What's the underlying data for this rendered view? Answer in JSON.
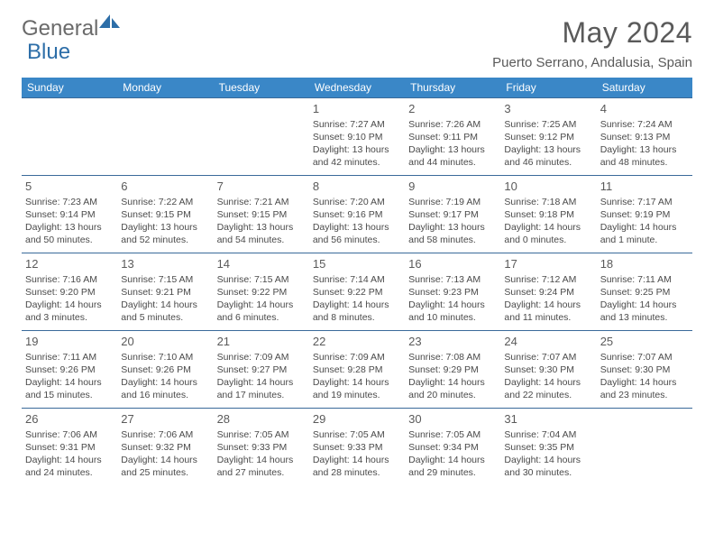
{
  "brand": {
    "part1": "General",
    "part2": "Blue"
  },
  "title": "May 2024",
  "location": "Puerto Serrano, Andalusia, Spain",
  "colors": {
    "header_bg": "#3a87c7",
    "header_fg": "#ffffff",
    "cell_border": "#3a6a9a",
    "text": "#4a4a4a",
    "title": "#5a5a5a",
    "brand_grey": "#6a6a6a",
    "brand_blue": "#2d6ea8",
    "background": "#ffffff"
  },
  "typography": {
    "title_fontsize": 32,
    "location_fontsize": 15,
    "dayheader_fontsize": 12,
    "daynum_fontsize": 13,
    "cell_fontsize": 10.5
  },
  "calendar": {
    "type": "table",
    "columns": [
      "Sunday",
      "Monday",
      "Tuesday",
      "Wednesday",
      "Thursday",
      "Friday",
      "Saturday"
    ],
    "weeks": [
      [
        null,
        null,
        null,
        {
          "n": "1",
          "sr": "7:27 AM",
          "ss": "9:10 PM",
          "dl": "13 hours and 42 minutes."
        },
        {
          "n": "2",
          "sr": "7:26 AM",
          "ss": "9:11 PM",
          "dl": "13 hours and 44 minutes."
        },
        {
          "n": "3",
          "sr": "7:25 AM",
          "ss": "9:12 PM",
          "dl": "13 hours and 46 minutes."
        },
        {
          "n": "4",
          "sr": "7:24 AM",
          "ss": "9:13 PM",
          "dl": "13 hours and 48 minutes."
        }
      ],
      [
        {
          "n": "5",
          "sr": "7:23 AM",
          "ss": "9:14 PM",
          "dl": "13 hours and 50 minutes."
        },
        {
          "n": "6",
          "sr": "7:22 AM",
          "ss": "9:15 PM",
          "dl": "13 hours and 52 minutes."
        },
        {
          "n": "7",
          "sr": "7:21 AM",
          "ss": "9:15 PM",
          "dl": "13 hours and 54 minutes."
        },
        {
          "n": "8",
          "sr": "7:20 AM",
          "ss": "9:16 PM",
          "dl": "13 hours and 56 minutes."
        },
        {
          "n": "9",
          "sr": "7:19 AM",
          "ss": "9:17 PM",
          "dl": "13 hours and 58 minutes."
        },
        {
          "n": "10",
          "sr": "7:18 AM",
          "ss": "9:18 PM",
          "dl": "14 hours and 0 minutes."
        },
        {
          "n": "11",
          "sr": "7:17 AM",
          "ss": "9:19 PM",
          "dl": "14 hours and 1 minute."
        }
      ],
      [
        {
          "n": "12",
          "sr": "7:16 AM",
          "ss": "9:20 PM",
          "dl": "14 hours and 3 minutes."
        },
        {
          "n": "13",
          "sr": "7:15 AM",
          "ss": "9:21 PM",
          "dl": "14 hours and 5 minutes."
        },
        {
          "n": "14",
          "sr": "7:15 AM",
          "ss": "9:22 PM",
          "dl": "14 hours and 6 minutes."
        },
        {
          "n": "15",
          "sr": "7:14 AM",
          "ss": "9:22 PM",
          "dl": "14 hours and 8 minutes."
        },
        {
          "n": "16",
          "sr": "7:13 AM",
          "ss": "9:23 PM",
          "dl": "14 hours and 10 minutes."
        },
        {
          "n": "17",
          "sr": "7:12 AM",
          "ss": "9:24 PM",
          "dl": "14 hours and 11 minutes."
        },
        {
          "n": "18",
          "sr": "7:11 AM",
          "ss": "9:25 PM",
          "dl": "14 hours and 13 minutes."
        }
      ],
      [
        {
          "n": "19",
          "sr": "7:11 AM",
          "ss": "9:26 PM",
          "dl": "14 hours and 15 minutes."
        },
        {
          "n": "20",
          "sr": "7:10 AM",
          "ss": "9:26 PM",
          "dl": "14 hours and 16 minutes."
        },
        {
          "n": "21",
          "sr": "7:09 AM",
          "ss": "9:27 PM",
          "dl": "14 hours and 17 minutes."
        },
        {
          "n": "22",
          "sr": "7:09 AM",
          "ss": "9:28 PM",
          "dl": "14 hours and 19 minutes."
        },
        {
          "n": "23",
          "sr": "7:08 AM",
          "ss": "9:29 PM",
          "dl": "14 hours and 20 minutes."
        },
        {
          "n": "24",
          "sr": "7:07 AM",
          "ss": "9:30 PM",
          "dl": "14 hours and 22 minutes."
        },
        {
          "n": "25",
          "sr": "7:07 AM",
          "ss": "9:30 PM",
          "dl": "14 hours and 23 minutes."
        }
      ],
      [
        {
          "n": "26",
          "sr": "7:06 AM",
          "ss": "9:31 PM",
          "dl": "14 hours and 24 minutes."
        },
        {
          "n": "27",
          "sr": "7:06 AM",
          "ss": "9:32 PM",
          "dl": "14 hours and 25 minutes."
        },
        {
          "n": "28",
          "sr": "7:05 AM",
          "ss": "9:33 PM",
          "dl": "14 hours and 27 minutes."
        },
        {
          "n": "29",
          "sr": "7:05 AM",
          "ss": "9:33 PM",
          "dl": "14 hours and 28 minutes."
        },
        {
          "n": "30",
          "sr": "7:05 AM",
          "ss": "9:34 PM",
          "dl": "14 hours and 29 minutes."
        },
        {
          "n": "31",
          "sr": "7:04 AM",
          "ss": "9:35 PM",
          "dl": "14 hours and 30 minutes."
        },
        null
      ]
    ],
    "labels": {
      "sunrise": "Sunrise:",
      "sunset": "Sunset:",
      "daylight": "Daylight:"
    }
  }
}
